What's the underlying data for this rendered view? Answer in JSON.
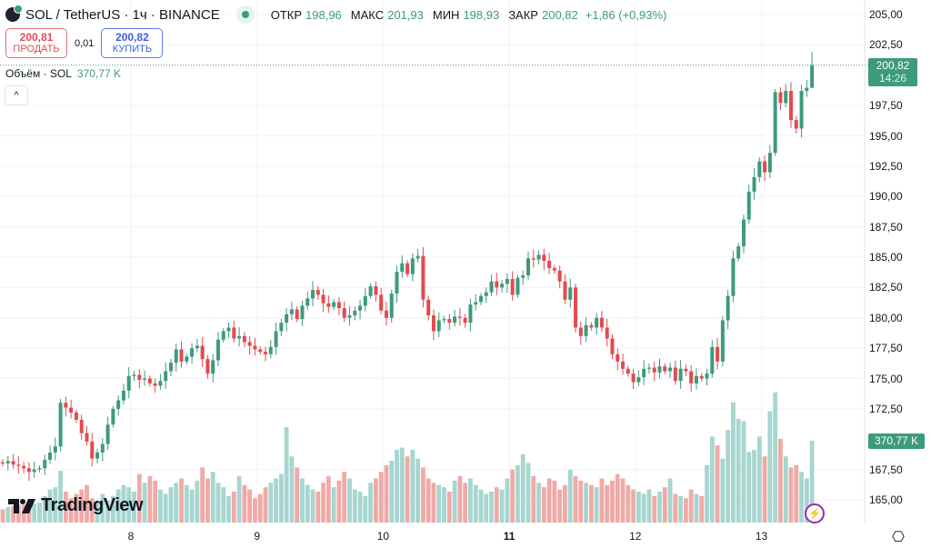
{
  "header": {
    "symbol": "SOL / TetherUS · 1ч · BINANCE",
    "open_label": "ОТКР",
    "open": "198,96",
    "high_label": "МАКС",
    "high": "201,93",
    "low_label": "МИН",
    "low": "198,93",
    "close_label": "ЗАКР",
    "close": "200,82",
    "change": "+1,86 (+0,93%)"
  },
  "trade": {
    "sell_price": "200,81",
    "sell_label": "ПРОДАТЬ",
    "spread": "0,01",
    "buy_price": "200,82",
    "buy_label": "КУПИТЬ"
  },
  "volume_legend": {
    "label": "Объём · SOL",
    "value": "370,77 K"
  },
  "collapse_icon": "^",
  "price_tag": {
    "price": "200,82",
    "countdown": "14:26"
  },
  "volume_tag": "370,77 K",
  "watermark": "TradingView",
  "colors": {
    "up": "#3d9a7d",
    "down": "#e34a50",
    "vol_up": "#a6d6cf",
    "vol_down": "#f0aaa6"
  },
  "chart_data": {
    "type": "candlestick",
    "title": "SOL / TetherUS · 1ч · BINANCE",
    "ylim": [
      163,
      206
    ],
    "price_ticks": [
      "205,00",
      "202,50",
      "197,50",
      "195,00",
      "192,50",
      "190,00",
      "187,50",
      "185,00",
      "182,50",
      "180,00",
      "177,50",
      "175,00",
      "172,50",
      "167,50",
      "165,00"
    ],
    "price_tick_values": [
      205,
      202.5,
      197.5,
      195,
      192.5,
      190,
      187.5,
      185,
      182.5,
      180,
      177.5,
      175,
      172.5,
      167.5,
      165
    ],
    "time_ticks": [
      {
        "label": "8",
        "index": 23,
        "bold": false
      },
      {
        "label": "9",
        "index": 47,
        "bold": false
      },
      {
        "label": "10",
        "index": 71,
        "bold": false
      },
      {
        "label": "11",
        "index": 95,
        "bold": true
      },
      {
        "label": "12",
        "index": 119,
        "bold": false
      },
      {
        "label": "13",
        "index": 143,
        "bold": false
      }
    ],
    "first_open": 168.1,
    "closes": [
      168.0,
      168.2,
      167.9,
      167.8,
      167.6,
      167.3,
      167.5,
      167.6,
      168.3,
      168.9,
      169.4,
      173.0,
      172.6,
      172.2,
      171.6,
      170.5,
      169.8,
      168.4,
      168.9,
      169.6,
      171.2,
      172.5,
      173.2,
      174.0,
      175.2,
      175.3,
      174.9,
      175.0,
      174.6,
      174.4,
      174.8,
      175.6,
      176.3,
      177.4,
      176.4,
      176.8,
      177.5,
      177.7,
      176.6,
      175.4,
      176.5,
      178.2,
      178.9,
      179.2,
      178.3,
      178.5,
      178.0,
      177.7,
      177.4,
      177.2,
      177.0,
      177.6,
      178.9,
      179.6,
      180.3,
      180.7,
      179.9,
      181.0,
      181.6,
      182.3,
      181.9,
      181.2,
      180.9,
      181.3,
      180.8,
      180.0,
      180.2,
      180.6,
      181.0,
      181.8,
      182.6,
      181.9,
      180.6,
      180.0,
      182.0,
      183.8,
      184.5,
      183.6,
      184.9,
      185.1,
      181.5,
      180.2,
      178.9,
      179.8,
      179.9,
      179.6,
      180.1,
      180.0,
      179.6,
      181.1,
      181.3,
      181.8,
      182.1,
      183.0,
      182.5,
      182.8,
      183.2,
      181.9,
      183.3,
      183.5,
      184.9,
      184.8,
      185.2,
      184.7,
      184.1,
      183.9,
      183.0,
      181.5,
      182.5,
      179.2,
      178.5,
      179.4,
      179.2,
      180.0,
      179.2,
      178.3,
      177.0,
      176.4,
      175.8,
      175.4,
      174.7,
      175.1,
      175.8,
      175.9,
      175.5,
      176.0,
      175.6,
      175.9,
      174.8,
      175.8,
      175.6,
      174.6,
      175.2,
      175.0,
      175.4,
      177.6,
      176.4,
      179.8,
      181.8,
      184.9,
      185.9,
      188.1,
      190.4,
      191.6,
      192.9,
      192.0,
      193.6,
      198.6,
      197.7,
      198.7,
      196.3,
      195.6,
      198.7,
      198.96,
      200.82
    ],
    "last_candle": {
      "open": 198.96,
      "high": 201.93,
      "low": 198.93,
      "close": 200.82
    },
    "volumes_k": [
      60,
      70,
      75,
      80,
      80,
      70,
      85,
      90,
      120,
      150,
      160,
      235,
      140,
      110,
      130,
      150,
      170,
      110,
      95,
      130,
      100,
      120,
      150,
      170,
      160,
      140,
      220,
      180,
      210,
      190,
      150,
      130,
      160,
      180,
      200,
      170,
      150,
      190,
      250,
      200,
      230,
      180,
      160,
      120,
      140,
      210,
      170,
      150,
      110,
      130,
      160,
      180,
      200,
      220,
      433,
      300,
      250,
      200,
      170,
      150,
      140,
      180,
      210,
      160,
      190,
      230,
      200,
      150,
      140,
      120,
      180,
      200,
      230,
      260,
      280,
      330,
      340,
      300,
      330,
      290,
      250,
      200,
      180,
      170,
      160,
      140,
      190,
      210,
      180,
      200,
      170,
      150,
      130,
      140,
      160,
      150,
      200,
      240,
      260,
      310,
      270,
      210,
      180,
      160,
      200,
      190,
      150,
      170,
      240,
      210,
      190,
      180,
      170,
      160,
      200,
      170,
      190,
      220,
      200,
      170,
      150,
      140,
      130,
      150,
      120,
      140,
      160,
      200,
      130,
      120,
      110,
      150,
      130,
      120,
      260,
      390,
      350,
      290,
      420,
      545,
      470,
      460,
      320,
      330,
      390,
      300,
      505,
      590,
      380,
      300,
      250,
      260,
      230,
      200,
      371
    ],
    "current_price": 200.82,
    "current_volume_k": 370.77
  }
}
